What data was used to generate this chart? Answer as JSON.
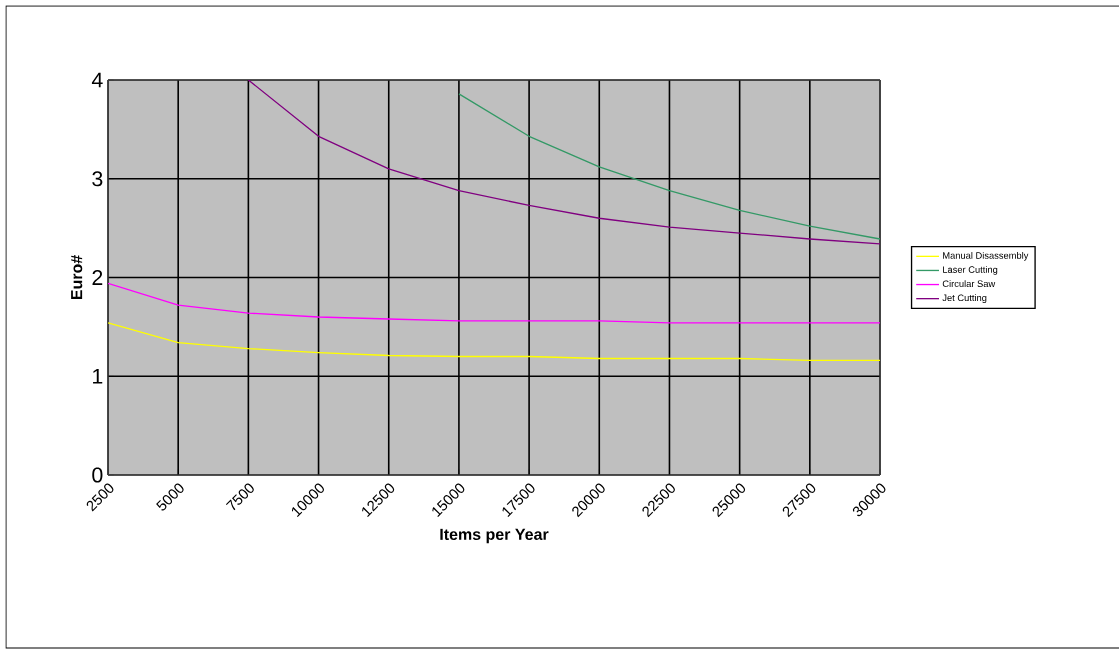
{
  "chart_data": {
    "type": "line",
    "xlabel": "Items per Year",
    "ylabel": "Euro#",
    "x": [
      2500,
      5000,
      7500,
      10000,
      12500,
      15000,
      17500,
      20000,
      22500,
      25000,
      27500,
      30000
    ],
    "series": [
      {
        "name": "Manual Disassembly",
        "color": "#ffff00",
        "values": [
          1.54,
          1.34,
          1.28,
          1.24,
          1.21,
          1.2,
          1.2,
          1.18,
          1.18,
          1.18,
          1.16,
          1.16
        ]
      },
      {
        "name": "Laser Cutting",
        "color": "#339966",
        "values": [
          null,
          null,
          null,
          null,
          null,
          3.86,
          3.43,
          3.12,
          2.88,
          2.68,
          2.52,
          2.39
        ]
      },
      {
        "name": "Circular Saw",
        "color": "#ff00ff",
        "values": [
          1.94,
          1.72,
          1.64,
          1.6,
          1.58,
          1.56,
          1.56,
          1.56,
          1.54,
          1.54,
          1.54,
          1.54
        ]
      },
      {
        "name": "Jet Cutting",
        "color": "#800080",
        "values": [
          null,
          null,
          4.0,
          3.43,
          3.1,
          2.88,
          2.73,
          2.6,
          2.51,
          2.45,
          2.39,
          2.34
        ]
      }
    ],
    "xlim": [
      2500,
      30000
    ],
    "xticks": [
      2500,
      5000,
      7500,
      10000,
      12500,
      15000,
      17500,
      20000,
      22500,
      25000,
      27500,
      30000
    ],
    "ylim": [
      0,
      4
    ],
    "yticks": [
      0,
      1,
      2,
      3,
      4
    ],
    "grid": true,
    "legend": "right",
    "line_style": "solid",
    "marker": "none"
  }
}
